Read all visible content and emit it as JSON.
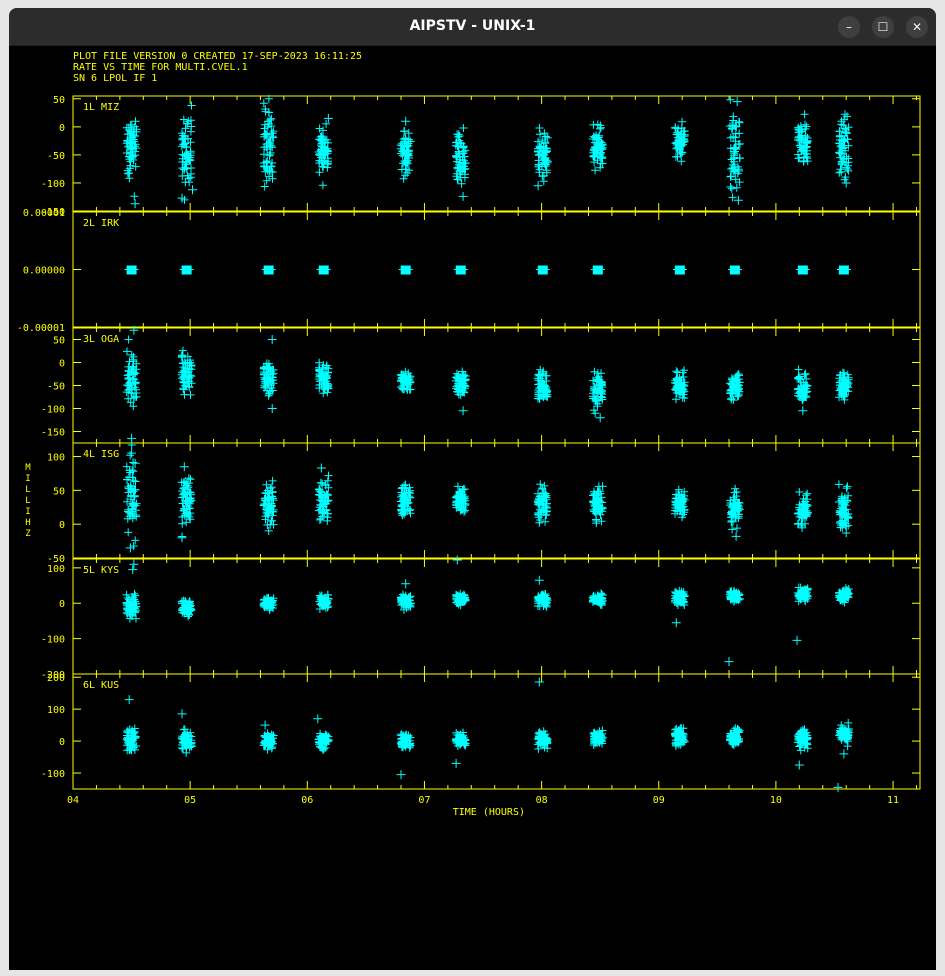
{
  "window": {
    "title": "AIPSTV - UNIX-1",
    "controls": {
      "minimize": "–",
      "maximize": "☐",
      "close": "✕"
    }
  },
  "colors": {
    "axes": "#ffff00",
    "points": "#00ffff",
    "background": "#000000",
    "titlebar": "#2c2c2c"
  },
  "header_lines": [
    "PLOT FILE VERSION 0  CREATED 17-SEP-2023 16:11:25",
    "RATE VS TIME FOR MULTI.CVEL.1",
    "SN 6  LPOL  IF 1"
  ],
  "chart_data": {
    "type": "scatter",
    "marker": "+",
    "xlabel": "TIME (HOURS)",
    "ylabel": "MILLIHZ",
    "xlim": [
      4,
      11.23
    ],
    "xticks": [
      4,
      5,
      6,
      7,
      8,
      9,
      10,
      11
    ],
    "xtick_labels": [
      "04",
      "05",
      "06",
      "07",
      "08",
      "09",
      "10",
      "11"
    ],
    "scan_times": [
      4.5,
      4.97,
      5.67,
      6.14,
      6.84,
      7.31,
      8.01,
      8.48,
      9.18,
      9.65,
      10.23,
      10.58
    ],
    "panels": [
      {
        "label": "1L MIZ",
        "ylim": [
          -150,
          55
        ],
        "yticks": [
          50,
          0,
          -50,
          -100,
          -150
        ],
        "ytick_labels": [
          "50",
          "0",
          "-50",
          "-100",
          "-150"
        ],
        "scans": [
          {
            "t": 4.5,
            "center": -40,
            "spread": 70
          },
          {
            "t": 4.97,
            "center": -45,
            "spread": 80
          },
          {
            "t": 5.67,
            "center": -30,
            "spread": 75
          },
          {
            "t": 6.14,
            "center": -45,
            "spread": 45
          },
          {
            "t": 6.84,
            "center": -45,
            "spread": 40
          },
          {
            "t": 7.31,
            "center": -55,
            "spread": 55
          },
          {
            "t": 8.01,
            "center": -50,
            "spread": 45
          },
          {
            "t": 8.48,
            "center": -40,
            "spread": 45
          },
          {
            "t": 9.18,
            "center": -30,
            "spread": 35
          },
          {
            "t": 9.65,
            "center": -50,
            "spread": 80
          },
          {
            "t": 10.23,
            "center": -25,
            "spread": 45
          },
          {
            "t": 10.58,
            "center": -40,
            "spread": 60
          }
        ],
        "outliers": [
          {
            "t": 4.53,
            "v": -137
          },
          {
            "t": 4.93,
            "v": -127
          },
          {
            "t": 5.02,
            "v": -112
          },
          {
            "t": 6.18,
            "v": 15
          },
          {
            "t": 6.84,
            "v": 10
          },
          {
            "t": 7.33,
            "v": -124
          },
          {
            "t": 7.97,
            "v": -105
          },
          {
            "t": 9.67,
            "v": 45
          },
          {
            "t": 9.68,
            "v": -131
          },
          {
            "t": 10.6,
            "v": -100
          }
        ]
      },
      {
        "label": "2L IRK",
        "ylim": [
          -1e-05,
          1e-05
        ],
        "yticks": [
          1e-05,
          0,
          -1e-05
        ],
        "ytick_labels": [
          "0.00001",
          "0.00000",
          "-0.00001"
        ],
        "scans": [
          {
            "t": 4.5,
            "center": 0,
            "spread": 0
          },
          {
            "t": 4.97,
            "center": 0,
            "spread": 0
          },
          {
            "t": 5.67,
            "center": 0,
            "spread": 0
          },
          {
            "t": 6.14,
            "center": 0,
            "spread": 0
          },
          {
            "t": 6.84,
            "center": 0,
            "spread": 0
          },
          {
            "t": 7.31,
            "center": 0,
            "spread": 0
          },
          {
            "t": 8.01,
            "center": 0,
            "spread": 0
          },
          {
            "t": 8.48,
            "center": 0,
            "spread": 0
          },
          {
            "t": 9.18,
            "center": 0,
            "spread": 0
          },
          {
            "t": 9.65,
            "center": 0,
            "spread": 0
          },
          {
            "t": 10.23,
            "center": 0,
            "spread": 0
          },
          {
            "t": 10.58,
            "center": 0,
            "spread": 0
          }
        ],
        "outliers": []
      },
      {
        "label": "3L OGA",
        "ylim": [
          -175,
          75
        ],
        "yticks": [
          50,
          0,
          -50,
          -100,
          -150
        ],
        "ytick_labels": [
          "50",
          "0",
          "-50",
          "-100",
          "-150"
        ],
        "scans": [
          {
            "t": 4.5,
            "center": -30,
            "spread": 60
          },
          {
            "t": 4.97,
            "center": -25,
            "spread": 40
          },
          {
            "t": 5.67,
            "center": -30,
            "spread": 40
          },
          {
            "t": 6.14,
            "center": -35,
            "spread": 35
          },
          {
            "t": 6.84,
            "center": -40,
            "spread": 25
          },
          {
            "t": 7.31,
            "center": -45,
            "spread": 30
          },
          {
            "t": 8.01,
            "center": -50,
            "spread": 35
          },
          {
            "t": 8.48,
            "center": -60,
            "spread": 40
          },
          {
            "t": 9.18,
            "center": -50,
            "spread": 30
          },
          {
            "t": 9.65,
            "center": -50,
            "spread": 30
          },
          {
            "t": 10.23,
            "center": -55,
            "spread": 30
          },
          {
            "t": 10.58,
            "center": -50,
            "spread": 35
          }
        ],
        "outliers": [
          {
            "t": 4.5,
            "v": -165
          },
          {
            "t": 4.52,
            "v": 70
          },
          {
            "t": 5.7,
            "v": 50
          },
          {
            "t": 5.7,
            "v": -100
          },
          {
            "t": 7.33,
            "v": -105
          },
          {
            "t": 8.5,
            "v": -120
          },
          {
            "t": 10.23,
            "v": -105
          }
        ]
      },
      {
        "label": "4L ISG",
        "ylim": [
          -50,
          120
        ],
        "yticks": [
          100,
          50,
          0,
          -50
        ],
        "ytick_labels": [
          "100",
          "50",
          "0",
          "-50"
        ],
        "scans": [
          {
            "t": 4.5,
            "center": 35,
            "spread": 60
          },
          {
            "t": 4.97,
            "center": 30,
            "spread": 45
          },
          {
            "t": 5.67,
            "center": 30,
            "spread": 35
          },
          {
            "t": 6.14,
            "center": 35,
            "spread": 35
          },
          {
            "t": 6.84,
            "center": 35,
            "spread": 25
          },
          {
            "t": 7.31,
            "center": 35,
            "spread": 25
          },
          {
            "t": 8.01,
            "center": 30,
            "spread": 30
          },
          {
            "t": 8.48,
            "center": 30,
            "spread": 25
          },
          {
            "t": 9.18,
            "center": 30,
            "spread": 25
          },
          {
            "t": 9.65,
            "center": 25,
            "spread": 30
          },
          {
            "t": 10.23,
            "center": 20,
            "spread": 25
          },
          {
            "t": 10.58,
            "center": 20,
            "spread": 30
          }
        ],
        "outliers": [
          {
            "t": 4.5,
            "v": 105
          },
          {
            "t": 4.53,
            "v": 90
          },
          {
            "t": 4.49,
            "v": -35
          },
          {
            "t": 4.95,
            "v": 85
          },
          {
            "t": 4.93,
            "v": -20
          },
          {
            "t": 6.12,
            "v": 83
          },
          {
            "t": 9.66,
            "v": -18
          }
        ]
      },
      {
        "label": "5L KYS",
        "ylim": [
          -200,
          125
        ],
        "yticks": [
          100,
          0,
          -100,
          -200
        ],
        "ytick_labels": [
          "100",
          "0",
          "-100",
          "-200"
        ],
        "scans": [
          {
            "t": 4.5,
            "center": -10,
            "spread": 40
          },
          {
            "t": 4.97,
            "center": -10,
            "spread": 25
          },
          {
            "t": 5.67,
            "center": 0,
            "spread": 20
          },
          {
            "t": 6.14,
            "center": 5,
            "spread": 20
          },
          {
            "t": 6.84,
            "center": 5,
            "spread": 20
          },
          {
            "t": 7.31,
            "center": 10,
            "spread": 18
          },
          {
            "t": 8.01,
            "center": 10,
            "spread": 20
          },
          {
            "t": 8.48,
            "center": 10,
            "spread": 15
          },
          {
            "t": 9.18,
            "center": 15,
            "spread": 20
          },
          {
            "t": 9.65,
            "center": 20,
            "spread": 18
          },
          {
            "t": 10.23,
            "center": 25,
            "spread": 20
          },
          {
            "t": 10.58,
            "center": 25,
            "spread": 20
          }
        ],
        "outliers": [
          {
            "t": 4.52,
            "v": 110
          },
          {
            "t": 4.51,
            "v": 95
          },
          {
            "t": 6.84,
            "v": 55
          },
          {
            "t": 7.28,
            "v": 125
          },
          {
            "t": 7.98,
            "v": 65
          },
          {
            "t": 9.15,
            "v": -55
          },
          {
            "t": 9.6,
            "v": -165
          },
          {
            "t": 10.18,
            "v": -105
          }
        ]
      },
      {
        "label": "6L KUS",
        "ylim": [
          -150,
          210
        ],
        "yticks": [
          200,
          100,
          0,
          -100
        ],
        "ytick_labels": [
          "200",
          "100",
          "0",
          "-100"
        ],
        "scans": [
          {
            "t": 4.5,
            "center": 5,
            "spread": 50
          },
          {
            "t": 4.97,
            "center": 0,
            "spread": 35
          },
          {
            "t": 5.67,
            "center": 0,
            "spread": 25
          },
          {
            "t": 6.14,
            "center": 0,
            "spread": 25
          },
          {
            "t": 6.84,
            "center": 0,
            "spread": 25
          },
          {
            "t": 7.31,
            "center": 5,
            "spread": 25
          },
          {
            "t": 8.01,
            "center": 5,
            "spread": 25
          },
          {
            "t": 8.48,
            "center": 10,
            "spread": 22
          },
          {
            "t": 9.18,
            "center": 15,
            "spread": 28
          },
          {
            "t": 9.65,
            "center": 15,
            "spread": 30
          },
          {
            "t": 10.23,
            "center": 10,
            "spread": 30
          },
          {
            "t": 10.58,
            "center": 20,
            "spread": 30
          }
        ],
        "outliers": [
          {
            "t": 4.48,
            "v": 130
          },
          {
            "t": 4.93,
            "v": 85
          },
          {
            "t": 5.64,
            "v": 50
          },
          {
            "t": 6.09,
            "v": 70
          },
          {
            "t": 6.8,
            "v": -105
          },
          {
            "t": 7.27,
            "v": -70
          },
          {
            "t": 7.98,
            "v": 185
          },
          {
            "t": 10.2,
            "v": -75
          },
          {
            "t": 10.53,
            "v": -145
          },
          {
            "t": 10.58,
            "v": -40
          }
        ]
      }
    ]
  }
}
